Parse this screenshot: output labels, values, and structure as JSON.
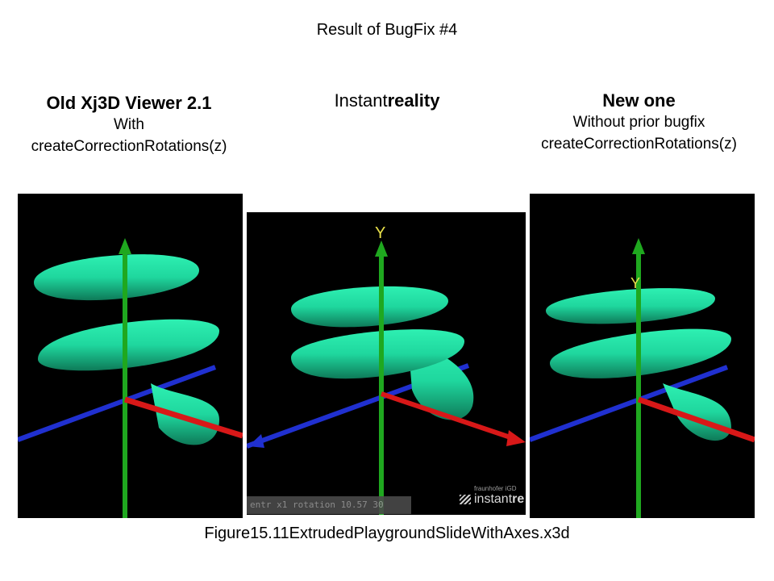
{
  "slide": {
    "title": "Result of BugFix #4",
    "caption": "Figure15.11ExtrudedPlaygroundSlideWithAxes.x3d"
  },
  "columns": [
    {
      "heading": "Old Xj3D Viewer 2.1",
      "line1": "With",
      "line2": "createCorrectionRotations(z)"
    },
    {
      "heading_prefix": "Instant",
      "heading_bold": "reality"
    },
    {
      "heading": "New one",
      "line1": "Without prior bugfix",
      "line2": "createCorrectionRotations(z)"
    }
  ],
  "panels": {
    "axis_label_y": "Y",
    "status_text": "entr x1 rotation 10.57 30",
    "logo_small": "fraunhofer iGD",
    "logo_text": "instant",
    "logo_bold": "re"
  },
  "colors": {
    "helix": "#1fd79e",
    "x_axis": "#d81818",
    "y_axis": "#1fa81f",
    "z_axis": "#2030d0",
    "label_y": "#e8e04a"
  }
}
